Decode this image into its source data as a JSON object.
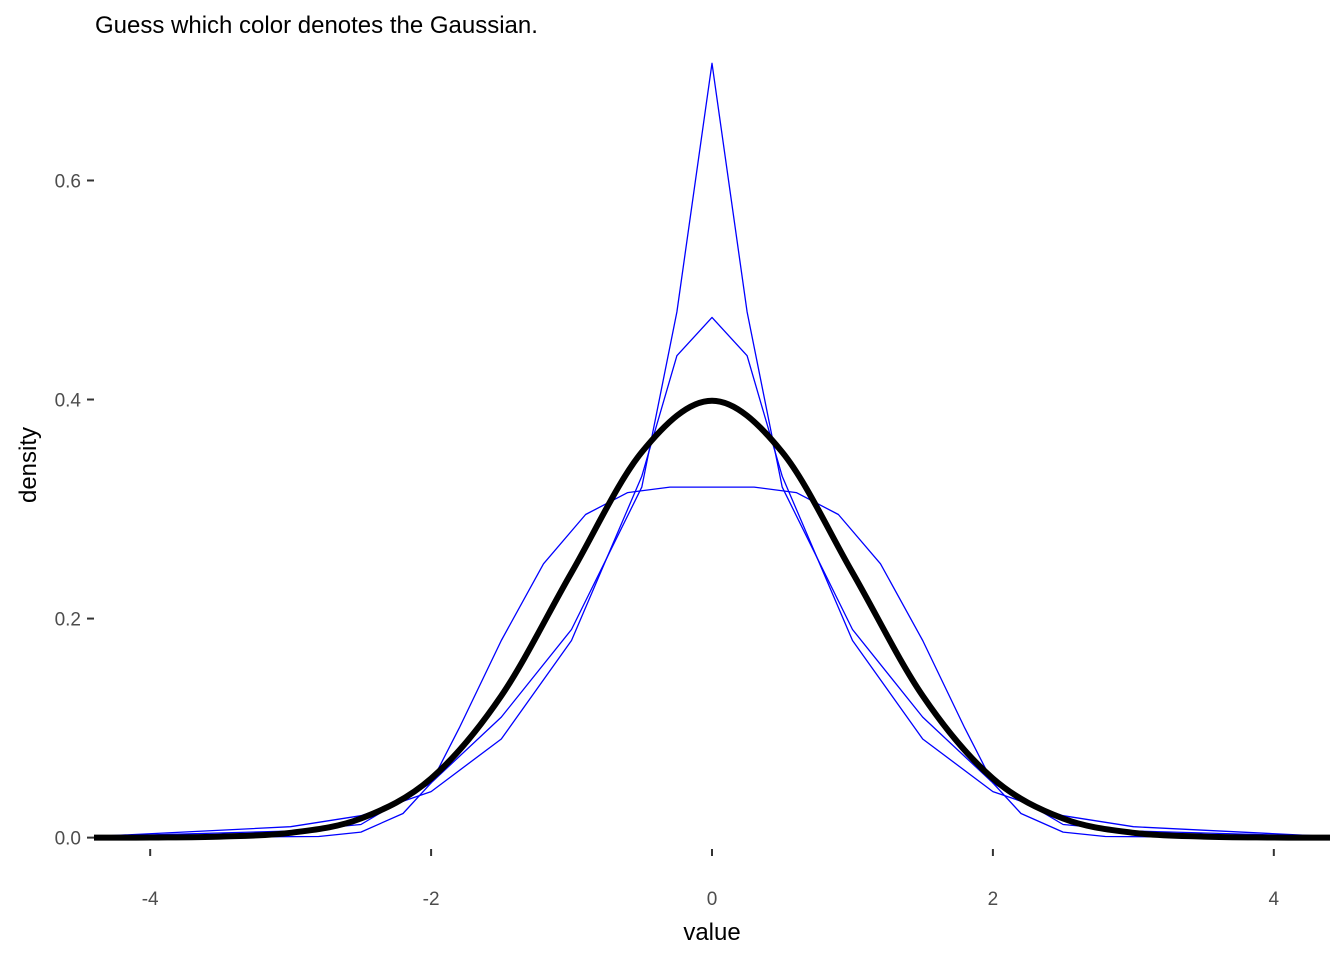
{
  "chart_data": {
    "type": "line",
    "title": "Guess which color denotes the Gaussian.",
    "xlabel": "value",
    "ylabel": "density",
    "xlim": [
      -4.4,
      4.4
    ],
    "ylim": [
      -0.004,
      0.71
    ],
    "x_ticks": [
      -4,
      -2,
      0,
      2,
      4
    ],
    "x_tick_labels": [
      "-4",
      "-2",
      "0",
      "2",
      "4"
    ],
    "y_ticks": [
      0.0,
      0.2,
      0.4,
      0.6
    ],
    "y_tick_labels": [
      "0.0",
      "0.2",
      "0.4",
      "0.6"
    ],
    "grid": false,
    "legend": "none",
    "series": [
      {
        "color": "#0000ff",
        "width": "thin",
        "x": [
          -4.4,
          -3,
          -2.5,
          -2,
          -1.5,
          -1,
          -0.5,
          -0.25,
          0,
          0.25,
          0.5,
          1,
          1.5,
          2,
          2.5,
          3,
          4.4
        ],
        "y": [
          0.001,
          0.006,
          0.012,
          0.05,
          0.11,
          0.19,
          0.32,
          0.48,
          0.707,
          0.48,
          0.32,
          0.19,
          0.11,
          0.05,
          0.012,
          0.006,
          0.001
        ]
      },
      {
        "color": "#0000ff",
        "width": "thin",
        "x": [
          -4.4,
          -3,
          -2.5,
          -2,
          -1.5,
          -1,
          -0.5,
          -0.25,
          0,
          0.25,
          0.5,
          1,
          1.5,
          2,
          2.5,
          3,
          4.4
        ],
        "y": [
          0.001,
          0.01,
          0.02,
          0.042,
          0.09,
          0.18,
          0.33,
          0.44,
          0.475,
          0.44,
          0.33,
          0.18,
          0.09,
          0.042,
          0.02,
          0.01,
          0.001
        ]
      },
      {
        "color": "#0000ff",
        "width": "thin",
        "x": [
          -4.4,
          -2.8,
          -2.5,
          -2.2,
          -2,
          -1.8,
          -1.5,
          -1.2,
          -0.9,
          -0.6,
          -0.3,
          0,
          0.3,
          0.6,
          0.9,
          1.2,
          1.5,
          1.8,
          2,
          2.2,
          2.5,
          2.8,
          4.4
        ],
        "y": [
          0,
          0.001,
          0.005,
          0.022,
          0.05,
          0.1,
          0.18,
          0.25,
          0.295,
          0.315,
          0.32,
          0.32,
          0.32,
          0.315,
          0.295,
          0.25,
          0.18,
          0.1,
          0.05,
          0.022,
          0.005,
          0.001,
          0
        ]
      },
      {
        "color": "#000000",
        "width": "thick",
        "x": [
          -4.4,
          -4,
          -3.5,
          -3,
          -2.5,
          -2,
          -1.5,
          -1,
          -0.5,
          0,
          0.5,
          1,
          1.5,
          2,
          2.5,
          3,
          3.5,
          4,
          4.4
        ],
        "y": [
          0.0,
          0.0001,
          0.0009,
          0.0044,
          0.0175,
          0.054,
          0.1295,
          0.242,
          0.352,
          0.3989,
          0.352,
          0.242,
          0.1295,
          0.054,
          0.0175,
          0.0044,
          0.0009,
          0.0001,
          0.0
        ]
      }
    ]
  }
}
